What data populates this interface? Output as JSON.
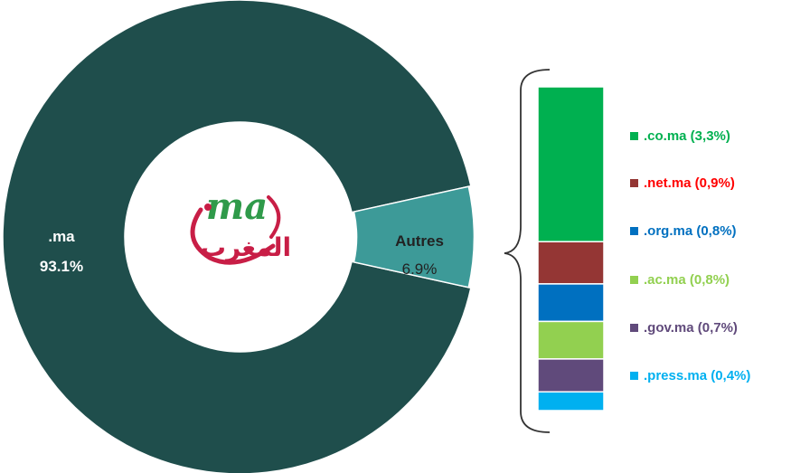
{
  "chart_data": {
    "type": "pie",
    "donut": true,
    "slices": [
      {
        "label": ".ma",
        "percent_label": "93.1%",
        "value": 93.1,
        "color": "#1f4e4c"
      },
      {
        "label": "Autres",
        "percent_label": "6.9%",
        "value": 6.9,
        "color": "#3d9a98"
      }
    ],
    "center_logo": {
      "text_latin": "ma",
      "text_arabic": "المغرب",
      "colors": [
        "#2f9a4a",
        "#c81e46"
      ]
    },
    "breakdown": {
      "type": "stacked_bar",
      "parent": "Autres",
      "items": [
        {
          "label": ".co.ma (3,3%)",
          "value": 3.3,
          "color": "#00b050"
        },
        {
          "label": ".net.ma (0,9%)",
          "value": 0.9,
          "color": "#943634"
        },
        {
          "label": ".org.ma (0,8%)",
          "value": 0.8,
          "color": "#0070c0"
        },
        {
          "label": ".ac.ma (0,8%)",
          "value": 0.8,
          "color": "#92d050"
        },
        {
          "label": ".gov.ma (0,7%)",
          "value": 0.7,
          "color": "#604a7b"
        },
        {
          "label": ".press.ma (0,4%)",
          "value": 0.4,
          "color": "#00b0f0"
        }
      ],
      "label_colors": [
        "#00b050",
        "#ff0000",
        "#0070c0",
        "#92d050",
        "#604a7b",
        "#00b0f0"
      ]
    }
  }
}
